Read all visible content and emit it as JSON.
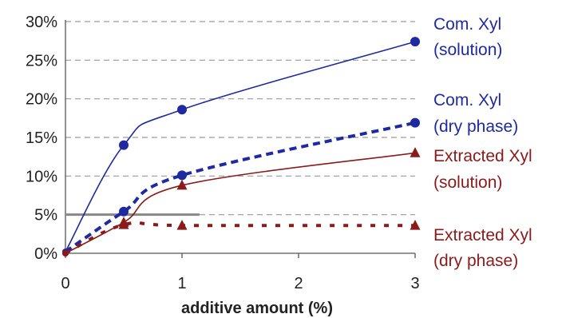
{
  "chart_data": {
    "type": "line",
    "title": "",
    "xlabel": "additive amount (%)",
    "ylabel": "",
    "xlim": [
      0,
      3
    ],
    "ylim": [
      0,
      30
    ],
    "x_ticks": [
      "0",
      "1",
      "2",
      "3"
    ],
    "y_ticks": [
      "0%",
      "5%",
      "10%",
      "15%",
      "20%",
      "25%",
      "30%"
    ],
    "grid": "horizontal dashed",
    "reference_line": {
      "y": 5,
      "x_start": 0,
      "x_end": 1.15,
      "color": "#888888"
    },
    "series": [
      {
        "name": "Com. Xyl (solution)",
        "label_lines": [
          "Com. Xyl",
          "(solution)"
        ],
        "x": [
          0,
          0.5,
          1,
          3
        ],
        "y": [
          0.2,
          14.0,
          18.6,
          27.4
        ],
        "color": "#1f2aa0",
        "marker": "circle",
        "line_style": "solid"
      },
      {
        "name": "Com. Xyl (dry phase)",
        "label_lines": [
          "Com. Xyl",
          "(dry phase)"
        ],
        "x": [
          0,
          0.5,
          1,
          3
        ],
        "y": [
          0.2,
          5.4,
          10.1,
          16.9
        ],
        "color": "#1f2aa0",
        "marker": "circle",
        "line_style": "dashed"
      },
      {
        "name": "Extracted Xyl (solution)",
        "label_lines": [
          "Extracted Xyl",
          "(solution)"
        ],
        "x": [
          0,
          0.5,
          1,
          3
        ],
        "y": [
          0.0,
          4.0,
          8.8,
          13.0
        ],
        "color": "#8b1a1a",
        "marker": "triangle",
        "line_style": "solid"
      },
      {
        "name": "Extracted Xyl (dry phase)",
        "label_lines": [
          "Extracted Xyl",
          "(dry phase)"
        ],
        "x": [
          0,
          0.5,
          1,
          3
        ],
        "y": [
          0.0,
          3.7,
          3.6,
          3.6
        ],
        "color": "#8b1a1a",
        "marker": "triangle",
        "line_style": "dotted"
      }
    ]
  }
}
